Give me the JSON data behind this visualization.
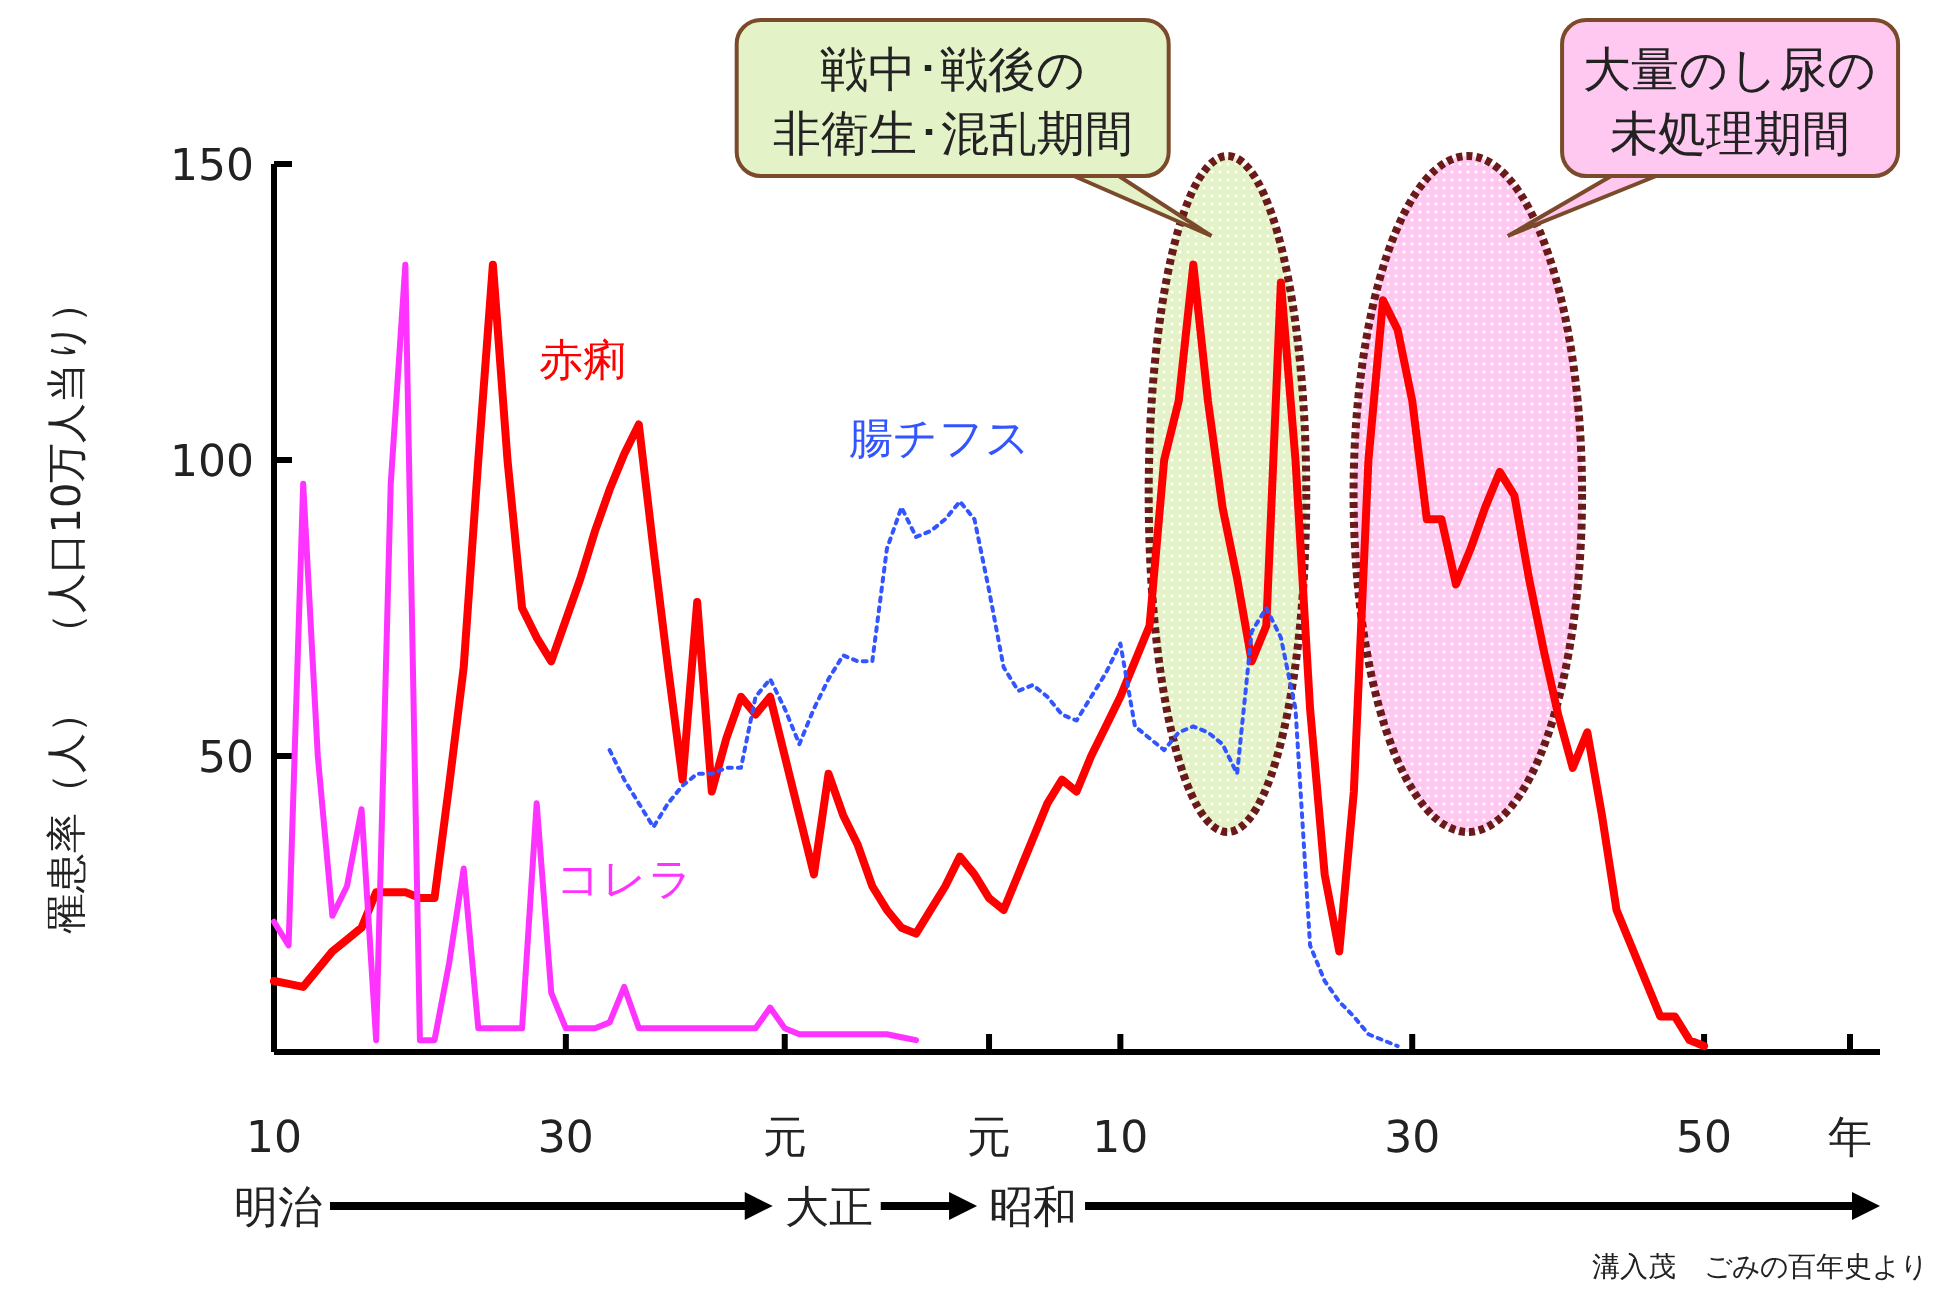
{
  "chart_data": {
    "type": "line",
    "ylabel": "罹患率（人）　（人口10万人当り）",
    "categories": [
      "10",
      null,
      null,
      null,
      null,
      null,
      null,
      null,
      null,
      null,
      null,
      null,
      null,
      null,
      null,
      null,
      null,
      null,
      null,
      null,
      "30",
      null,
      null,
      null,
      null,
      null,
      null,
      null,
      null,
      null,
      null,
      null,
      null,
      null,
      null,
      "元",
      null,
      null,
      null,
      null,
      null,
      null,
      null,
      null,
      null,
      null,
      null,
      null,
      null,
      "元",
      null,
      null,
      null,
      null,
      null,
      null,
      null,
      null,
      "10",
      null,
      null,
      null,
      null,
      null,
      null,
      null,
      null,
      null,
      null,
      null,
      null,
      null,
      null,
      null,
      null,
      null,
      null,
      null,
      "30",
      null,
      null,
      null,
      null,
      null,
      null,
      null,
      null,
      null,
      null,
      null,
      null,
      null,
      null,
      null,
      null,
      null,
      null,
      null,
      "50",
      null,
      null,
      null,
      null,
      null,
      null,
      null,
      null,
      null,
      "年"
    ],
    "ylim": [
      0,
      150
    ],
    "yticks": [
      50,
      100,
      150
    ],
    "series": [
      {
        "name": "赤痢",
        "color": "#ff0000",
        "line_style": "solid",
        "values": [
          12,
          11.5,
          11,
          14,
          17,
          19,
          21,
          27,
          27,
          27,
          26,
          26,
          45,
          65,
          100,
          133,
          100,
          75,
          70,
          66,
          73,
          80,
          88,
          95,
          101,
          106,
          85,
          65,
          46,
          76,
          44,
          53,
          60,
          57,
          60,
          50,
          40,
          30,
          47,
          40,
          35,
          28,
          24,
          21,
          20,
          24,
          28,
          33,
          30,
          26,
          24,
          30,
          36,
          42,
          46,
          44,
          50,
          55,
          60,
          66,
          72,
          100,
          110,
          133,
          110,
          92,
          80,
          66,
          72,
          130,
          100,
          58,
          30,
          17,
          44,
          100,
          127,
          122,
          110,
          90,
          90,
          79,
          85,
          92,
          98,
          94,
          80,
          68,
          57,
          48,
          54,
          40,
          24,
          18,
          12,
          6,
          6,
          2,
          1,
          null,
          null,
          null,
          null,
          null,
          null,
          null,
          null,
          null,
          null
        ]
      },
      {
        "name": "腸チフス",
        "color": "#3355ff",
        "line_style": "dotted",
        "values": [
          null,
          null,
          null,
          null,
          null,
          null,
          null,
          null,
          null,
          null,
          null,
          null,
          null,
          null,
          null,
          null,
          null,
          null,
          null,
          null,
          null,
          null,
          null,
          51,
          46,
          42,
          38,
          42,
          45,
          47,
          47,
          48,
          48,
          60,
          63,
          58,
          52,
          58,
          63,
          67,
          66,
          66,
          85,
          92,
          87,
          88,
          90,
          93,
          90,
          78,
          65,
          61,
          62,
          60,
          57,
          56,
          60,
          64,
          69,
          55,
          53,
          51,
          54,
          55,
          54,
          52,
          47,
          71,
          75,
          70,
          58,
          18,
          12,
          8.5,
          6,
          3,
          2,
          1,
          null,
          null,
          null,
          null,
          null,
          null,
          null,
          null,
          null,
          null,
          null,
          null,
          null,
          null,
          null,
          null,
          null,
          null,
          null,
          null,
          null,
          null,
          null,
          null,
          null,
          null,
          null,
          null,
          null,
          null,
          null
        ]
      },
      {
        "name": "コレラ",
        "color": "#ff33ff",
        "line_style": "solid",
        "values": [
          22,
          18,
          96,
          50,
          23,
          28,
          41,
          2,
          96,
          133,
          2,
          2,
          15,
          31,
          4,
          4,
          4,
          4,
          42,
          10,
          4,
          4,
          4,
          5,
          11,
          4,
          4,
          4,
          4,
          4,
          4,
          4,
          4,
          4,
          7.5,
          4,
          3,
          3,
          3,
          3,
          3,
          3,
          3,
          2.5,
          2,
          null,
          null,
          null,
          null,
          null,
          null,
          null,
          null,
          null,
          null,
          null,
          null,
          null,
          null,
          null,
          null,
          null,
          null,
          null,
          null,
          null,
          null,
          null,
          null,
          null,
          null,
          null,
          null,
          null,
          null,
          null,
          null,
          null,
          null,
          null,
          null,
          null,
          null,
          null,
          null,
          null,
          null,
          null,
          null,
          null,
          null,
          null,
          null,
          null,
          null,
          null,
          null,
          null,
          null,
          null,
          null,
          null,
          null,
          null,
          null,
          null,
          null,
          null,
          null
        ]
      }
    ],
    "annotations": [
      "明治",
      "大正",
      "昭和",
      "戦中･戦後の非衛生･混乱期間",
      "大量のし尿の未処理期間",
      "溝入茂　ごみの百年史より"
    ]
  }
}
